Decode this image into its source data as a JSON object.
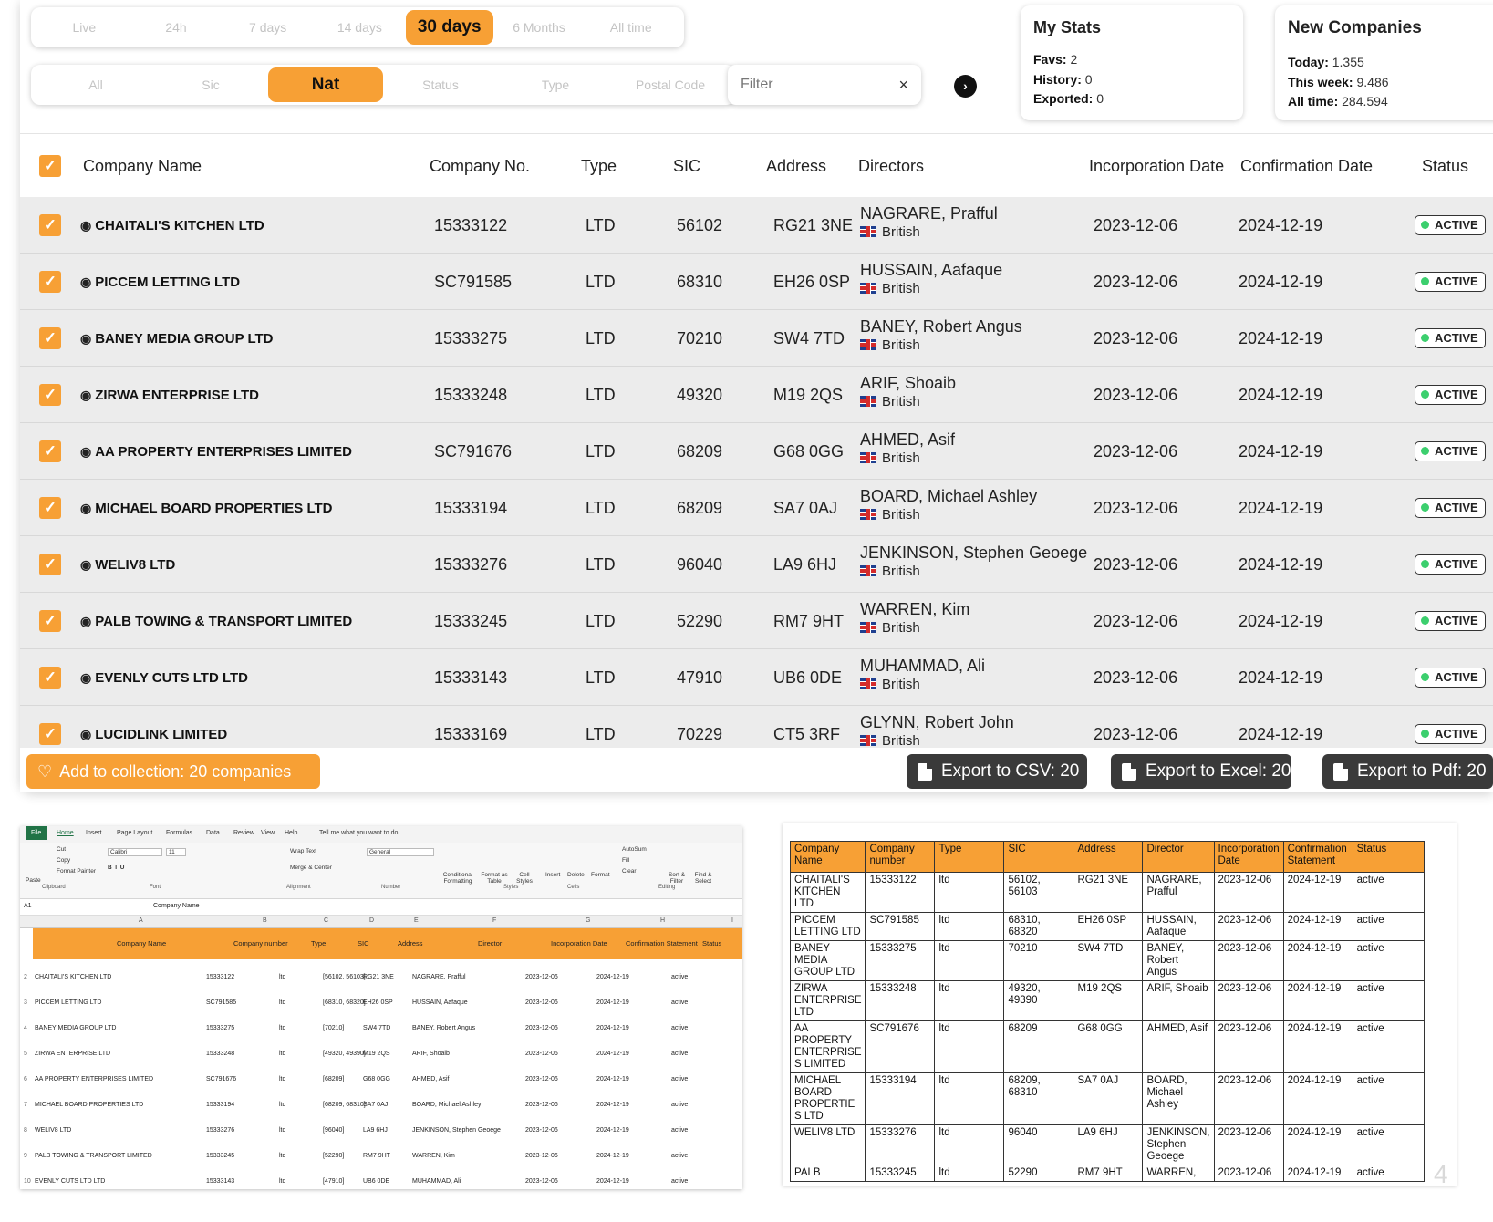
{
  "time_filters": {
    "items": [
      "Live",
      "24h",
      "7 days",
      "14 days",
      "30 days",
      "6 Months",
      "All time"
    ],
    "active": "30 days"
  },
  "category_filters": {
    "items": [
      "All",
      "Sic",
      "Nat",
      "Status",
      "Type",
      "Postal Code"
    ],
    "active": "Nat"
  },
  "filter_input": {
    "placeholder": "Filter",
    "clear": "×"
  },
  "go_button": "›",
  "my_stats": {
    "title": "My Stats",
    "favs_label": "Favs:",
    "favs": "2",
    "history_label": "History:",
    "history": "0",
    "exported_label": "Exported:",
    "exported": "0"
  },
  "new_companies": {
    "title": "New Companies",
    "today_label": "Today:",
    "today": "1.355",
    "week_label": "This week:",
    "week": "9.486",
    "all_label": "All time:",
    "all": "284.594"
  },
  "table": {
    "headers": [
      "Company Name",
      "Company No.",
      "Type",
      "SIC",
      "Address",
      "Directors",
      "Incorporation Date",
      "Confirmation Date",
      "Status"
    ],
    "rows": [
      {
        "name": "CHAITALI'S KITCHEN LTD",
        "no": "15333122",
        "type": "LTD",
        "sic": "56102",
        "addr": "RG21 3NE",
        "director": "NAGRARE, Prafful",
        "nat": "British",
        "inc": "2023-12-06",
        "conf": "2024-12-19",
        "status": "ACTIVE"
      },
      {
        "name": "PICCEM LETTING LTD",
        "no": "SC791585",
        "type": "LTD",
        "sic": "68310",
        "addr": "EH26 0SP",
        "director": "HUSSAIN, Aafaque",
        "nat": "British",
        "inc": "2023-12-06",
        "conf": "2024-12-19",
        "status": "ACTIVE"
      },
      {
        "name": "BANEY MEDIA GROUP LTD",
        "no": "15333275",
        "type": "LTD",
        "sic": "70210",
        "addr": "SW4 7TD",
        "director": "BANEY, Robert Angus",
        "nat": "British",
        "inc": "2023-12-06",
        "conf": "2024-12-19",
        "status": "ACTIVE"
      },
      {
        "name": "ZIRWA ENTERPRISE LTD",
        "no": "15333248",
        "type": "LTD",
        "sic": "49320",
        "addr": "M19 2QS",
        "director": "ARIF, Shoaib",
        "nat": "British",
        "inc": "2023-12-06",
        "conf": "2024-12-19",
        "status": "ACTIVE"
      },
      {
        "name": "AA PROPERTY ENTERPRISES LIMITED",
        "no": "SC791676",
        "type": "LTD",
        "sic": "68209",
        "addr": "G68 0GG",
        "director": "AHMED, Asif",
        "nat": "British",
        "inc": "2023-12-06",
        "conf": "2024-12-19",
        "status": "ACTIVE"
      },
      {
        "name": "MICHAEL BOARD PROPERTIES LTD",
        "no": "15333194",
        "type": "LTD",
        "sic": "68209",
        "addr": "SA7 0AJ",
        "director": "BOARD, Michael Ashley",
        "nat": "British",
        "inc": "2023-12-06",
        "conf": "2024-12-19",
        "status": "ACTIVE"
      },
      {
        "name": "WELIV8 LTD",
        "no": "15333276",
        "type": "LTD",
        "sic": "96040",
        "addr": "LA9 6HJ",
        "director": "JENKINSON, Stephen Geoege",
        "nat": "British",
        "inc": "2023-12-06",
        "conf": "2024-12-19",
        "status": "ACTIVE"
      },
      {
        "name": "PALB TOWING & TRANSPORT LIMITED",
        "no": "15333245",
        "type": "LTD",
        "sic": "52290",
        "addr": "RM7 9HT",
        "director": "WARREN, Kim",
        "nat": "British",
        "inc": "2023-12-06",
        "conf": "2024-12-19",
        "status": "ACTIVE"
      },
      {
        "name": "EVENLY CUTS LTD LTD",
        "no": "15333143",
        "type": "LTD",
        "sic": "47910",
        "addr": "UB6 0DE",
        "director": "MUHAMMAD, Ali",
        "nat": "British",
        "inc": "2023-12-06",
        "conf": "2024-12-19",
        "status": "ACTIVE"
      },
      {
        "name": "LUCIDLINK LIMITED",
        "no": "15333169",
        "type": "LTD",
        "sic": "70229",
        "addr": "CT5 3RF",
        "director": "GLYNN, Robert John",
        "nat": "British",
        "inc": "2023-12-06",
        "conf": "2024-12-19",
        "status": "ACTIVE"
      }
    ]
  },
  "actions": {
    "add_collection": "Add to collection: 20 companies",
    "export_csv": "Export to CSV: 20",
    "export_excel": "Export to Excel: 20",
    "export_pdf": "Export to Pdf: 20"
  },
  "excel": {
    "tabs": [
      "File",
      "Home",
      "Insert",
      "Page Layout",
      "Formulas",
      "Data",
      "Review",
      "View",
      "Help",
      "Tell me what you want to do"
    ],
    "ribbon_groups": [
      "Clipboard",
      "Font",
      "Alignment",
      "Number",
      "Styles",
      "Cells",
      "Editing"
    ],
    "ribbon_items": {
      "paste": "Paste",
      "cut": "Cut",
      "copy": "Copy",
      "format_painter": "Format Painter",
      "font": "Calibri",
      "size": "11",
      "wrap": "Wrap Text",
      "merge": "Merge & Center",
      "general": "General",
      "cond": "Conditional Formatting",
      "fmt_table": "Format as Table",
      "cell_styles": "Cell Styles",
      "insert": "Insert",
      "delete": "Delete",
      "format": "Format",
      "autosum": "AutoSum",
      "fill": "Fill",
      "clear": "Clear",
      "sort": "Sort & Filter",
      "find": "Find & Select"
    },
    "cell_ref": "A1",
    "formula": "Company Name",
    "col_letters": [
      "A",
      "B",
      "C",
      "D",
      "E",
      "F",
      "G",
      "H",
      "I"
    ],
    "headers": [
      "Company Name",
      "Company number",
      "Type",
      "SIC",
      "Address",
      "Director",
      "Incorporation Date",
      "Confirmation Statement",
      "Status"
    ],
    "rows": [
      [
        "2",
        "CHAITALI'S KITCHEN LTD",
        "15333122",
        "ltd",
        "[56102, 56103]",
        "RG21 3NE",
        "NAGRARE, Prafful",
        "2023-12-06",
        "2024-12-19",
        "active"
      ],
      [
        "3",
        "PICCEM LETTING LTD",
        "SC791585",
        "ltd",
        "[68310, 68320]",
        "EH26 0SP",
        "HUSSAIN, Aafaque",
        "2023-12-06",
        "2024-12-19",
        "active"
      ],
      [
        "4",
        "BANEY MEDIA GROUP LTD",
        "15333275",
        "ltd",
        "[70210]",
        "SW4 7TD",
        "BANEY, Robert Angus",
        "2023-12-06",
        "2024-12-19",
        "active"
      ],
      [
        "5",
        "ZIRWA ENTERPRISE LTD",
        "15333248",
        "ltd",
        "[49320, 49390]",
        "M19 2QS",
        "ARIF, Shoaib",
        "2023-12-06",
        "2024-12-19",
        "active"
      ],
      [
        "6",
        "AA PROPERTY ENTERPRISES LIMITED",
        "SC791676",
        "ltd",
        "[68209]",
        "G68 0GG",
        "AHMED, Asif",
        "2023-12-06",
        "2024-12-19",
        "active"
      ],
      [
        "7",
        "MICHAEL BOARD PROPERTIES LTD",
        "15333194",
        "ltd",
        "[68209, 68310]",
        "SA7 0AJ",
        "BOARD, Michael Ashley",
        "2023-12-06",
        "2024-12-19",
        "active"
      ],
      [
        "8",
        "WELIV8 LTD",
        "15333276",
        "ltd",
        "[96040]",
        "LA9 6HJ",
        "JENKINSON, Stephen Geoege",
        "2023-12-06",
        "2024-12-19",
        "active"
      ],
      [
        "9",
        "PALB TOWING & TRANSPORT LIMITED",
        "15333245",
        "ltd",
        "[52290]",
        "RM7 9HT",
        "WARREN, Kim",
        "2023-12-06",
        "2024-12-19",
        "active"
      ],
      [
        "10",
        "EVENLY CUTS LTD LTD",
        "15333143",
        "ltd",
        "[47910]",
        "UB6 0DE",
        "MUHAMMAD, Ali",
        "2023-12-06",
        "2024-12-19",
        "active"
      ]
    ]
  },
  "pdf": {
    "headers": [
      "Company Name",
      "Company number",
      "Type",
      "SIC",
      "Address",
      "Director",
      "Incorporation Date",
      "Confirmation Statement",
      "Status"
    ],
    "rows": [
      [
        "CHAITALI'S KITCHEN LTD",
        "15333122",
        "ltd",
        "56102, 56103",
        "RG21 3NE",
        "NAGRARE, Prafful",
        "2023-12-06",
        "2024-12-19",
        "active"
      ],
      [
        "PICCEM LETTING LTD",
        "SC791585",
        "ltd",
        "68310, 68320",
        "EH26 0SP",
        "HUSSAIN, Aafaque",
        "2023-12-06",
        "2024-12-19",
        "active"
      ],
      [
        "BANEY MEDIA GROUP LTD",
        "15333275",
        "ltd",
        "70210",
        "SW4 7TD",
        "BANEY, Robert Angus",
        "2023-12-06",
        "2024-12-19",
        "active"
      ],
      [
        "ZIRWA ENTERPRISE LTD",
        "15333248",
        "ltd",
        "49320, 49390",
        "M19 2QS",
        "ARIF, Shoaib",
        "2023-12-06",
        "2024-12-19",
        "active"
      ],
      [
        "AA PROPERTY ENTERPRISE S LIMITED",
        "SC791676",
        "ltd",
        "68209",
        "G68 0GG",
        "AHMED, Asif",
        "2023-12-06",
        "2024-12-19",
        "active"
      ],
      [
        "MICHAEL BOARD PROPERTIE S LTD",
        "15333194",
        "ltd",
        "68209, 68310",
        "SA7 0AJ",
        "BOARD, Michael Ashley",
        "2023-12-06",
        "2024-12-19",
        "active"
      ],
      [
        "WELIV8 LTD",
        "15333276",
        "ltd",
        "96040",
        "LA9 6HJ",
        "JENKINSON, Stephen Geoege",
        "2023-12-06",
        "2024-12-19",
        "active"
      ],
      [
        "PALB",
        "15333245",
        "ltd",
        "52290",
        "RM7 9HT",
        "WARREN,",
        "2023-12-06",
        "2024-12-19",
        "active"
      ]
    ],
    "page_number": "4"
  }
}
